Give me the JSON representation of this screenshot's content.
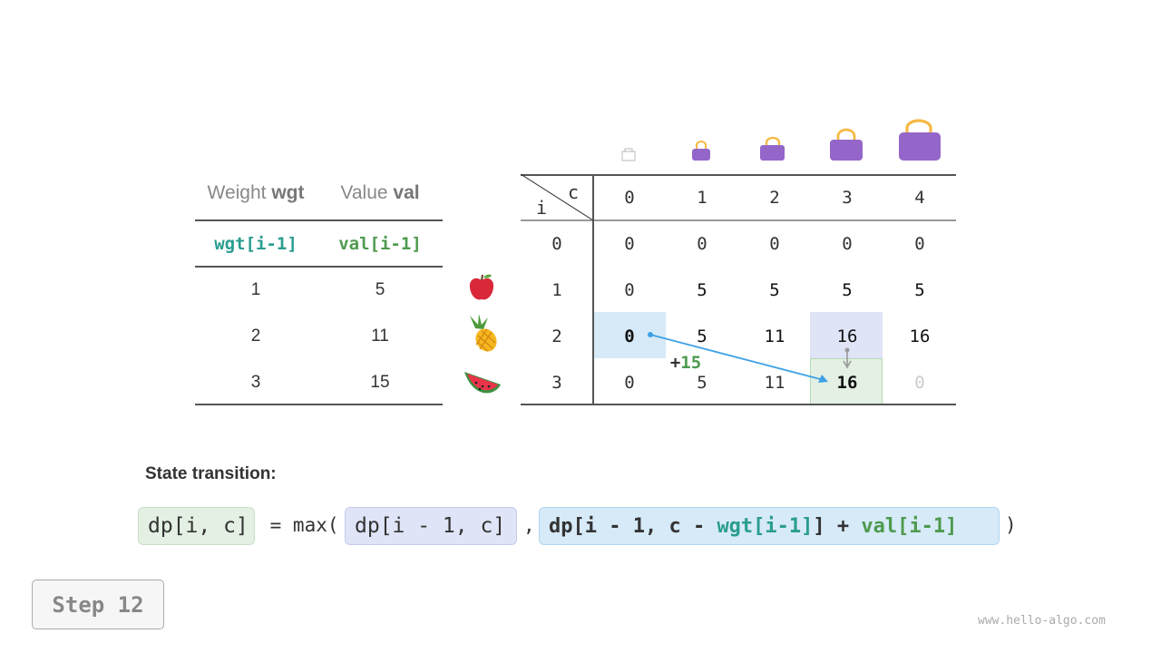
{
  "items_table": {
    "headers": [
      {
        "label": "Weight ",
        "bold": "wgt"
      },
      {
        "label": "Value ",
        "bold": "val"
      }
    ],
    "subheaders": [
      "wgt[i-1]",
      "val[i-1]"
    ],
    "rows": [
      {
        "weight": "1",
        "value": "5",
        "icon": "apple-icon"
      },
      {
        "weight": "2",
        "value": "11",
        "icon": "pineapple-icon"
      },
      {
        "weight": "3",
        "value": "15",
        "icon": "watermelon-icon"
      }
    ]
  },
  "dp_table": {
    "corner_col_label": "c",
    "corner_row_label": "i",
    "col_headers": [
      "0",
      "1",
      "2",
      "3",
      "4"
    ],
    "row_headers": [
      "0",
      "1",
      "2",
      "3"
    ],
    "cells": [
      [
        "0",
        "0",
        "0",
        "0",
        "0"
      ],
      [
        "0",
        "5",
        "5",
        "5",
        "5"
      ],
      [
        "0",
        "5",
        "11",
        "16",
        "16"
      ],
      [
        "0",
        "5",
        "11",
        "16",
        "0"
      ]
    ],
    "bag_icons": [
      "bag-icon-empty",
      "bag-icon-1",
      "bag-icon-2",
      "bag-icon-3",
      "bag-icon-4"
    ],
    "annotation": "+15"
  },
  "colors": {
    "teal": "#2a9d8f",
    "green": "#4e9a4e",
    "blue_highlight": "#d6eaf8",
    "lavender_highlight": "#e0e4f7",
    "green_highlight": "#e3f0e3",
    "arrow": "#3ea1e6",
    "bag": "#9466c9",
    "handle": "#f5b942"
  },
  "formula": {
    "title": "State transition:",
    "lhs": "dp[i, c]",
    "eq": " = max(",
    "opt1": "dp[i - 1, c]",
    "comma": ",",
    "opt2_a": "dp[i - 1, c - ",
    "opt2_wgt": "wgt[i-1]",
    "opt2_b": "] + ",
    "opt2_val": "val[i-1]",
    "close": ")"
  },
  "step_label": "Step 12",
  "watermark": "www.hello-algo.com"
}
